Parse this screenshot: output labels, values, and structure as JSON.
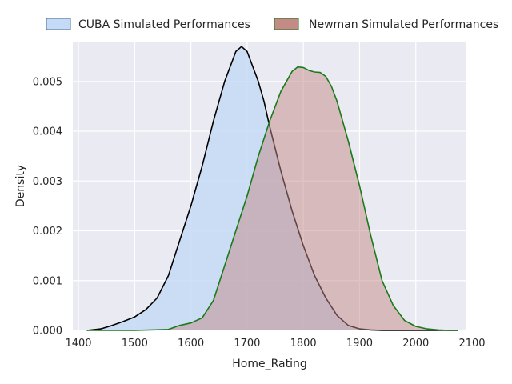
{
  "chart_data": {
    "type": "area",
    "xlabel": "Home_Rating",
    "ylabel": "Density",
    "xlim": [
      1390,
      2090
    ],
    "ylim": [
      0,
      0.0058
    ],
    "xticks": [
      1400,
      1500,
      1600,
      1700,
      1800,
      1900,
      2000,
      2100
    ],
    "yticks": [
      0.0,
      0.001,
      0.002,
      0.003,
      0.004,
      0.005
    ],
    "ytick_labels": [
      "0.000",
      "0.001",
      "0.002",
      "0.003",
      "0.004",
      "0.005"
    ],
    "grid": true,
    "legend_position": "top",
    "series": [
      {
        "name": "CUBA Simulated Performances",
        "fill": "#c5daf6",
        "stroke": "#000000",
        "x": [
          1415,
          1440,
          1460,
          1480,
          1500,
          1520,
          1540,
          1560,
          1580,
          1600,
          1620,
          1640,
          1660,
          1680,
          1690,
          1700,
          1710,
          1720,
          1730,
          1740,
          1760,
          1780,
          1800,
          1820,
          1840,
          1860,
          1880,
          1900,
          1920,
          1940,
          1960,
          1980,
          2000,
          2020,
          2040,
          2060,
          2075
        ],
        "y": [
          0.0,
          3e-05,
          0.0001,
          0.00018,
          0.00027,
          0.00042,
          0.00065,
          0.0011,
          0.0018,
          0.0025,
          0.0033,
          0.0042,
          0.005,
          0.0056,
          0.0057,
          0.0056,
          0.0053,
          0.005,
          0.0046,
          0.0041,
          0.0032,
          0.0024,
          0.0017,
          0.0011,
          0.00065,
          0.0003,
          0.0001,
          3e-05,
          1e-05,
          0.0,
          0.0,
          0.0,
          0.0,
          0.0,
          0.0,
          0.0,
          0.0
        ]
      },
      {
        "name": "Newman Simulated Performances",
        "fill": "#c48a86",
        "stroke": "#1a7a1a",
        "x": [
          1415,
          1500,
          1560,
          1580,
          1600,
          1620,
          1640,
          1660,
          1680,
          1700,
          1720,
          1740,
          1760,
          1780,
          1790,
          1800,
          1810,
          1820,
          1830,
          1840,
          1850,
          1860,
          1880,
          1900,
          1920,
          1940,
          1960,
          1980,
          2000,
          2020,
          2040,
          2060,
          2075
        ],
        "y": [
          0.0,
          0.0,
          2e-05,
          0.0001,
          0.00015,
          0.00025,
          0.0006,
          0.0013,
          0.002,
          0.0027,
          0.0035,
          0.0042,
          0.0048,
          0.0052,
          0.00529,
          0.00528,
          0.00522,
          0.00519,
          0.00518,
          0.0051,
          0.0049,
          0.0046,
          0.0038,
          0.0029,
          0.0019,
          0.001,
          0.0005,
          0.0002,
          8e-05,
          3e-05,
          1e-05,
          0.0,
          0.0
        ]
      }
    ]
  }
}
